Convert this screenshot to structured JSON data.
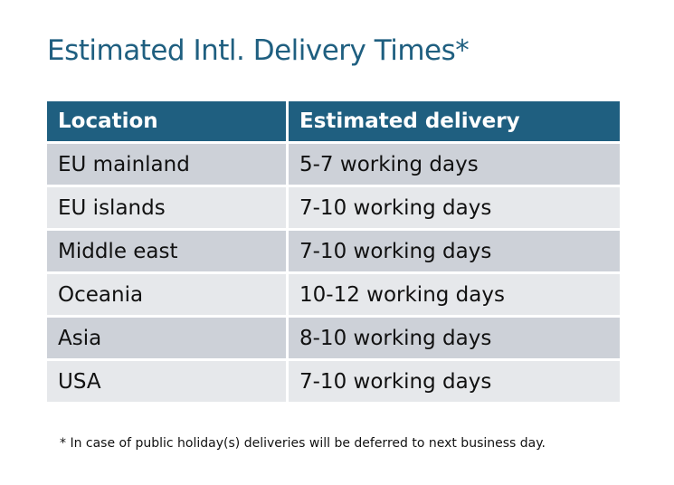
{
  "title": "Estimated Intl. Delivery Times*",
  "table": {
    "headers": [
      "Location",
      "Estimated delivery"
    ],
    "rows": [
      [
        "EU mainland",
        "5-7 working days"
      ],
      [
        "EU islands",
        "7-10 working days"
      ],
      [
        "Middle east",
        "7-10 working days"
      ],
      [
        "Oceania",
        "10-12 working days"
      ],
      [
        "Asia",
        "8-10 working days"
      ],
      [
        "USA",
        "7-10 working days"
      ]
    ]
  },
  "footnote": "* In case of public holiday(s) deliveries will be deferred to next business day.",
  "colors": {
    "header": "#1f5f80",
    "row_odd": "#cdd1d8",
    "row_even": "#e6e8eb"
  }
}
